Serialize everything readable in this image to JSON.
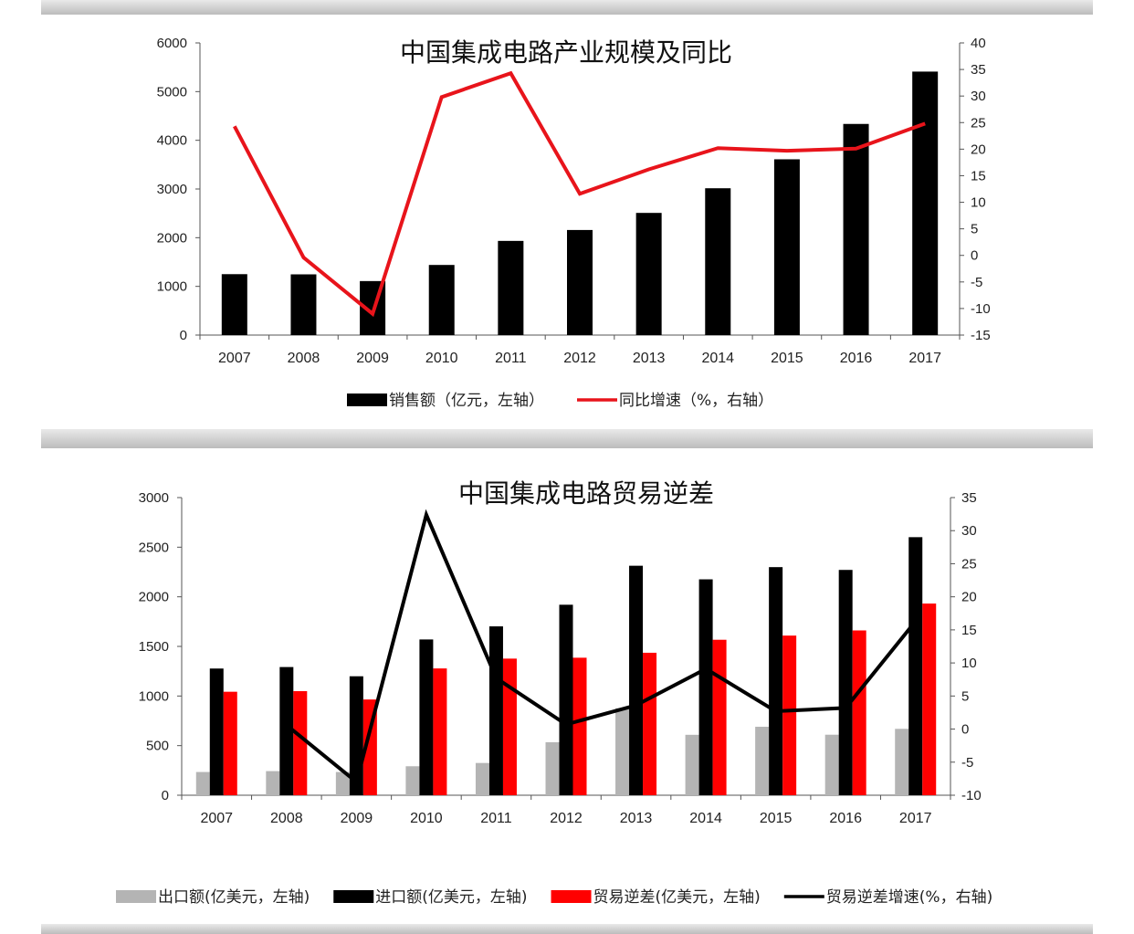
{
  "chart_data": [
    {
      "type": "bar",
      "title": "中国集成电路产业规模及同比",
      "categories": [
        "2007",
        "2008",
        "2009",
        "2010",
        "2011",
        "2012",
        "2013",
        "2014",
        "2015",
        "2016",
        "2017"
      ],
      "series": [
        {
          "name": "销售额（亿元，左轴）",
          "type": "bar",
          "axis": "left",
          "color": "#000000",
          "values": [
            1251,
            1247,
            1109,
            1440,
            1934,
            2158,
            2509,
            3015,
            3610,
            4336,
            5411
          ]
        },
        {
          "name": "同比增速（%，右轴）",
          "type": "line",
          "axis": "right",
          "color": "#e8141b",
          "values": [
            24.3,
            -0.4,
            -11.0,
            29.8,
            34.3,
            11.6,
            16.2,
            20.2,
            19.7,
            20.1,
            24.8
          ]
        }
      ],
      "ylim_left": [
        0,
        6000
      ],
      "yticks_left": [
        "0",
        "1000",
        "2000",
        "3000",
        "4000",
        "5000",
        "6000"
      ],
      "ylim_right": [
        -15,
        40
      ],
      "yticks_right": [
        "-15",
        "-10",
        "-5",
        "0",
        "5",
        "10",
        "15",
        "20",
        "25",
        "30",
        "35",
        "40"
      ],
      "legend": "bottom"
    },
    {
      "type": "bar",
      "title": "中国集成电路贸易逆差",
      "categories": [
        "2007",
        "2008",
        "2009",
        "2010",
        "2011",
        "2012",
        "2013",
        "2014",
        "2015",
        "2016",
        "2017"
      ],
      "series": [
        {
          "name": "出口额(亿美元，左轴)",
          "type": "bar",
          "axis": "left",
          "color": "#b4b4b4",
          "values": [
            234,
            243,
            234,
            292,
            325,
            534,
            877,
            609,
            690,
            610,
            669
          ]
        },
        {
          "name": "进口额(亿美元，左轴)",
          "type": "bar",
          "axis": "left",
          "color": "#000000",
          "values": [
            1277,
            1292,
            1199,
            1570,
            1702,
            1920,
            2313,
            2176,
            2299,
            2271,
            2601
          ]
        },
        {
          "name": "贸易逆差(亿美元，左轴)",
          "type": "bar",
          "axis": "left",
          "color": "#ff0000",
          "values": [
            1043,
            1049,
            965,
            1278,
            1377,
            1386,
            1436,
            1567,
            1609,
            1661,
            1932
          ]
        },
        {
          "name": "贸易逆差增速(%，右轴)",
          "type": "line",
          "axis": "right",
          "color": "#000000",
          "values": [
            null,
            0.6,
            -8.0,
            32.4,
            7.7,
            0.7,
            3.6,
            9.1,
            2.7,
            3.2,
            16.3
          ]
        }
      ],
      "ylim_left": [
        0,
        3000
      ],
      "yticks_left": [
        "0",
        "500",
        "1000",
        "1500",
        "2000",
        "2500",
        "3000"
      ],
      "ylim_right": [
        -10,
        35
      ],
      "yticks_right": [
        "-10",
        "-5",
        "0",
        "5",
        "10",
        "15",
        "20",
        "25",
        "30",
        "35"
      ],
      "legend": "bottom"
    }
  ]
}
